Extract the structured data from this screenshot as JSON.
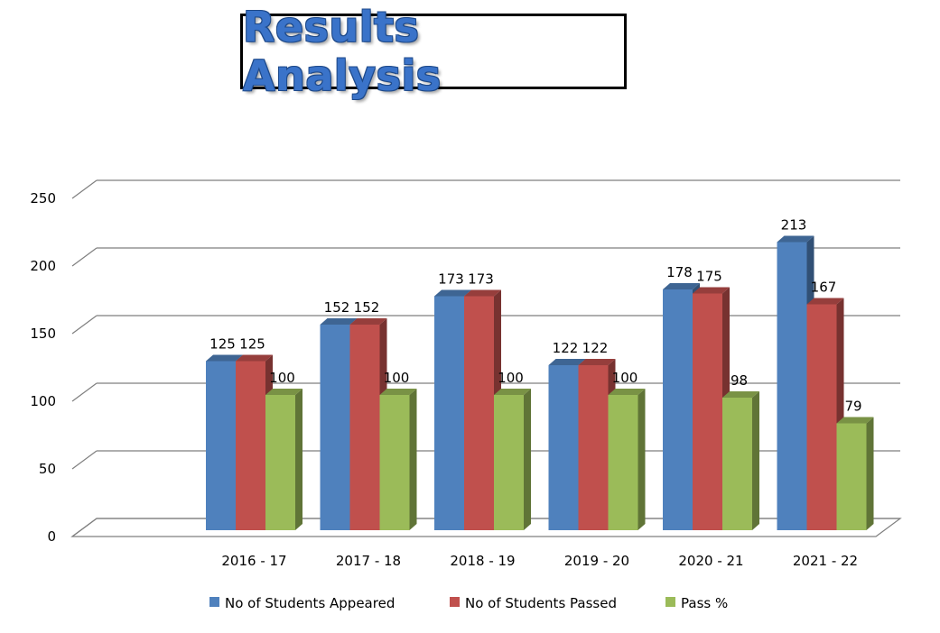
{
  "title": "Results Analysis",
  "chart_data": {
    "type": "bar",
    "title": "Results Analysis",
    "categories": [
      "2016 - 17",
      "2017 - 18",
      "2018 - 19",
      "2019 - 20",
      "2020 - 21",
      "2021 - 22"
    ],
    "series": [
      {
        "name": "No of Students Appeared",
        "values": [
          125,
          152,
          173,
          122,
          178,
          213
        ],
        "color": "#4f81bd"
      },
      {
        "name": "No of Students Passed",
        "values": [
          125,
          152,
          173,
          122,
          175,
          167
        ],
        "color": "#c0504d"
      },
      {
        "name": "Pass %",
        "values": [
          100,
          100,
          100,
          100,
          98,
          79
        ],
        "color": "#9bbb59"
      }
    ],
    "y_ticks": [
      "0",
      "50",
      "100",
      "150",
      "200",
      "250"
    ],
    "ylim": [
      0,
      250
    ],
    "grid": true,
    "legend_position": "bottom",
    "style": "3d-clustered-column"
  }
}
